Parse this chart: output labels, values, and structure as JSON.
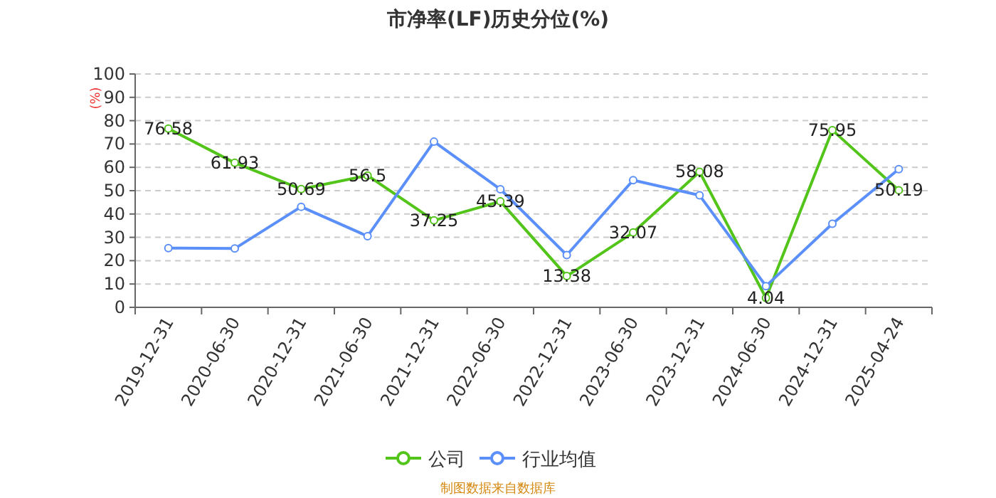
{
  "chart_data": {
    "type": "line",
    "title": "市净率(LF)历史分位(%)",
    "ylabel": "(%)",
    "categories": [
      "2019-12-31",
      "2020-06-30",
      "2020-12-31",
      "2021-06-30",
      "2021-12-31",
      "2022-06-30",
      "2022-12-31",
      "2023-06-30",
      "2023-12-31",
      "2024-06-30",
      "2024-12-31",
      "2025-04-24"
    ],
    "series": [
      {
        "name": "公司",
        "color": "#52c41a",
        "values": [
          76.58,
          61.93,
          50.69,
          56.5,
          37.25,
          45.39,
          13.38,
          32.07,
          58.08,
          4.04,
          75.95,
          50.19
        ],
        "value_labels": [
          "76.58",
          "61.93",
          "50.69",
          "56.5",
          "37.25",
          "45.39",
          "13.38",
          "32.07",
          "58.08",
          "4.04",
          "75.95",
          "50.19"
        ]
      },
      {
        "name": "行业均值",
        "color": "#5b8ff9",
        "values": [
          25.4,
          25.2,
          43.1,
          30.5,
          71,
          50.6,
          22.4,
          54.5,
          48,
          9.1,
          35.8,
          59.2
        ]
      }
    ],
    "ylim": [
      0,
      100
    ],
    "yticks": [
      0,
      10,
      20,
      30,
      40,
      50,
      60,
      70,
      80,
      90,
      100
    ],
    "grid": "y",
    "legend": "bottom",
    "marker": "circle",
    "line_style": "solid",
    "annotations": [
      "制图数据来自数据库"
    ]
  }
}
